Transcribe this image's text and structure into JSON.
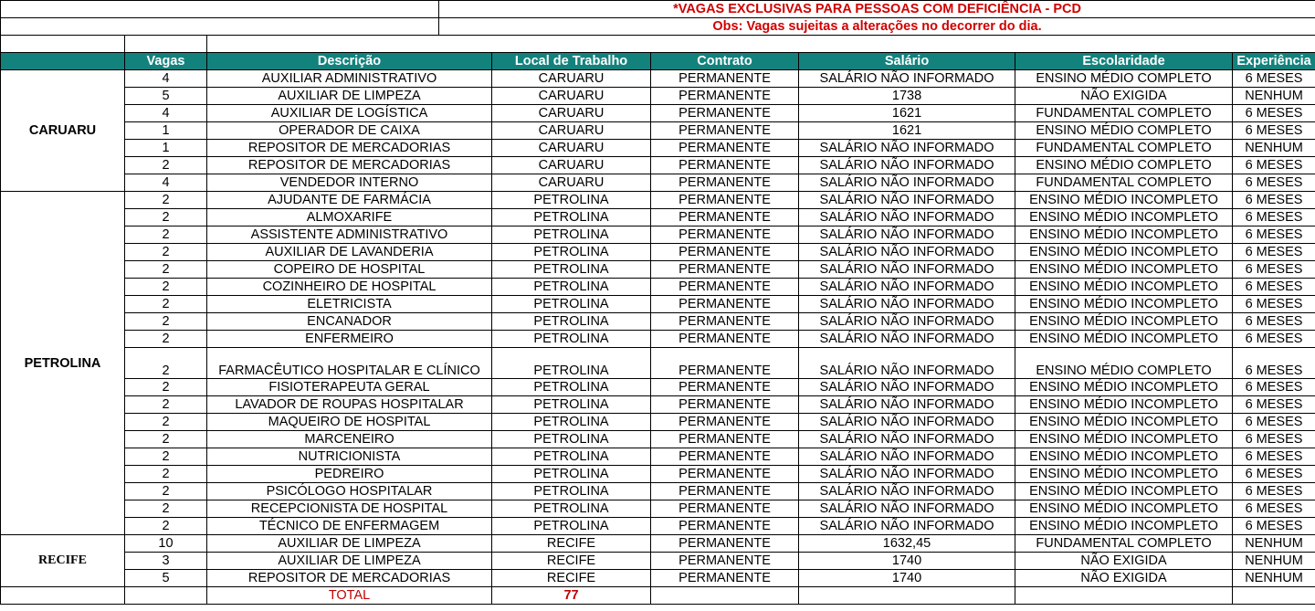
{
  "header": {
    "title": "*VAGAS EXCLUSIVAS PARA PESSOAS COM DEFICIÊNCIA - PCD",
    "note": "Obs: Vagas sujeitas a alterações no decorrer do dia."
  },
  "table": {
    "columns": [
      "Vagas",
      "Descrição",
      "Local de Trabalho",
      "Contrato",
      "Salário",
      "Escolaridade",
      "Experiência"
    ],
    "groups": [
      {
        "city": "CARUARU",
        "rows": [
          [
            4,
            "AUXILIAR ADMINISTRATIVO",
            "CARUARU",
            "PERMANENTE",
            "SALÁRIO NÃO INFORMADO",
            "ENSINO MÉDIO COMPLETO",
            "6 MESES"
          ],
          [
            5,
            "AUXILIAR DE LIMPEZA",
            "CARUARU",
            "PERMANENTE",
            "1738",
            "NÃO EXIGIDA",
            "NENHUM"
          ],
          [
            4,
            "AUXILIAR DE LOGÍSTICA",
            "CARUARU",
            "PERMANENTE",
            "1621",
            "FUNDAMENTAL COMPLETO",
            "6 MESES"
          ],
          [
            1,
            "OPERADOR DE CAIXA",
            "CARUARU",
            "PERMANENTE",
            "1621",
            "ENSINO MÉDIO COMPLETO",
            "6 MESES"
          ],
          [
            1,
            "REPOSITOR DE MERCADORIAS",
            "CARUARU",
            "PERMANENTE",
            "SALÁRIO NÃO INFORMADO",
            "FUNDAMENTAL COMPLETO",
            "NENHUM"
          ],
          [
            2,
            "REPOSITOR DE MERCADORIAS",
            "CARUARU",
            "PERMANENTE",
            "SALÁRIO NÃO INFORMADO",
            "ENSINO MÉDIO COMPLETO",
            "6 MESES"
          ],
          [
            4,
            "VENDEDOR INTERNO",
            "CARUARU",
            "PERMANENTE",
            "SALÁRIO NÃO INFORMADO",
            "FUNDAMENTAL COMPLETO",
            "6 MESES"
          ]
        ]
      },
      {
        "city": "PETROLINA",
        "rows": [
          [
            2,
            "AJUDANTE DE FARMÁCIA",
            "PETROLINA",
            "PERMANENTE",
            "SALÁRIO NÃO INFORMADO",
            "ENSINO MÉDIO INCOMPLETO",
            "6 MESES"
          ],
          [
            2,
            "ALMOXARIFE",
            "PETROLINA",
            "PERMANENTE",
            "SALÁRIO NÃO INFORMADO",
            "ENSINO MÉDIO INCOMPLETO",
            "6 MESES"
          ],
          [
            2,
            "ASSISTENTE ADMINISTRATIVO",
            "PETROLINA",
            "PERMANENTE",
            "SALÁRIO NÃO INFORMADO",
            "ENSINO MÉDIO INCOMPLETO",
            "6 MESES"
          ],
          [
            2,
            "AUXILIAR DE LAVANDERIA",
            "PETROLINA",
            "PERMANENTE",
            "SALÁRIO NÃO INFORMADO",
            "ENSINO MÉDIO INCOMPLETO",
            "6 MESES"
          ],
          [
            2,
            "COPEIRO DE HOSPITAL",
            "PETROLINA",
            "PERMANENTE",
            "SALÁRIO NÃO INFORMADO",
            "ENSINO MÉDIO INCOMPLETO",
            "6 MESES"
          ],
          [
            2,
            "COZINHEIRO DE HOSPITAL",
            "PETROLINA",
            "PERMANENTE",
            "SALÁRIO NÃO INFORMADO",
            "ENSINO MÉDIO INCOMPLETO",
            "6 MESES"
          ],
          [
            2,
            "ELETRICISTA",
            "PETROLINA",
            "PERMANENTE",
            "SALÁRIO NÃO INFORMADO",
            "ENSINO MÉDIO INCOMPLETO",
            "6 MESES"
          ],
          [
            2,
            "ENCANADOR",
            "PETROLINA",
            "PERMANENTE",
            "SALÁRIO NÃO INFORMADO",
            "ENSINO MÉDIO INCOMPLETO",
            "6 MESES"
          ],
          [
            2,
            "ENFERMEIRO",
            "PETROLINA",
            "PERMANENTE",
            "SALÁRIO NÃO INFORMADO",
            "ENSINO MÉDIO INCOMPLETO",
            "6 MESES"
          ],
          [
            2,
            "FARMACÊUTICO HOSPITALAR E CLÍNICO",
            "PETROLINA",
            "PERMANENTE",
            "SALÁRIO NÃO INFORMADO",
            "ENSINO MÉDIO COMPLETO",
            "6 MESES"
          ],
          [
            2,
            "FISIOTERAPEUTA GERAL",
            "PETROLINA",
            "PERMANENTE",
            "SALÁRIO NÃO INFORMADO",
            "ENSINO MÉDIO INCOMPLETO",
            "6 MESES"
          ],
          [
            2,
            "LAVADOR DE ROUPAS HOSPITALAR",
            "PETROLINA",
            "PERMANENTE",
            "SALÁRIO NÃO INFORMADO",
            "ENSINO MÉDIO INCOMPLETO",
            "6 MESES"
          ],
          [
            2,
            "MAQUEIRO DE HOSPITAL",
            "PETROLINA",
            "PERMANENTE",
            "SALÁRIO NÃO INFORMADO",
            "ENSINO MÉDIO INCOMPLETO",
            "6 MESES"
          ],
          [
            2,
            "MARCENEIRO",
            "PETROLINA",
            "PERMANENTE",
            "SALÁRIO NÃO INFORMADO",
            "ENSINO MÉDIO INCOMPLETO",
            "6 MESES"
          ],
          [
            2,
            "NUTRICIONISTA",
            "PETROLINA",
            "PERMANENTE",
            "SALÁRIO NÃO INFORMADO",
            "ENSINO MÉDIO INCOMPLETO",
            "6 MESES"
          ],
          [
            2,
            "PEDREIRO",
            "PETROLINA",
            "PERMANENTE",
            "SALÁRIO NÃO INFORMADO",
            "ENSINO MÉDIO INCOMPLETO",
            "6 MESES"
          ],
          [
            2,
            "PSICÓLOGO HOSPITALAR",
            "PETROLINA",
            "PERMANENTE",
            "SALÁRIO NÃO INFORMADO",
            "ENSINO MÉDIO INCOMPLETO",
            "6 MESES"
          ],
          [
            2,
            "RECEPCIONISTA DE HOSPITAL",
            "PETROLINA",
            "PERMANENTE",
            "SALÁRIO NÃO INFORMADO",
            "ENSINO MÉDIO INCOMPLETO",
            "6 MESES"
          ],
          [
            2,
            "TÉCNICO DE ENFERMAGEM",
            "PETROLINA",
            "PERMANENTE",
            "SALÁRIO NÃO INFORMADO",
            "ENSINO MÉDIO INCOMPLETO",
            "6 MESES"
          ]
        ]
      },
      {
        "city": "RECIFE",
        "rows": [
          [
            10,
            "AUXILIAR DE LIMPEZA",
            "RECIFE",
            "PERMANENTE",
            "1632,45",
            "FUNDAMENTAL COMPLETO",
            "NENHUM"
          ],
          [
            3,
            "AUXILIAR DE LIMPEZA",
            "RECIFE",
            "PERMANENTE",
            "1740",
            "NÃO EXIGIDA",
            "NENHUM"
          ],
          [
            5,
            "REPOSITOR DE MERCADORIAS",
            "RECIFE",
            "PERMANENTE",
            "1740",
            "NÃO EXIGIDA",
            "NENHUM"
          ]
        ]
      }
    ]
  },
  "total": {
    "label": "TOTAL",
    "value": 77
  }
}
